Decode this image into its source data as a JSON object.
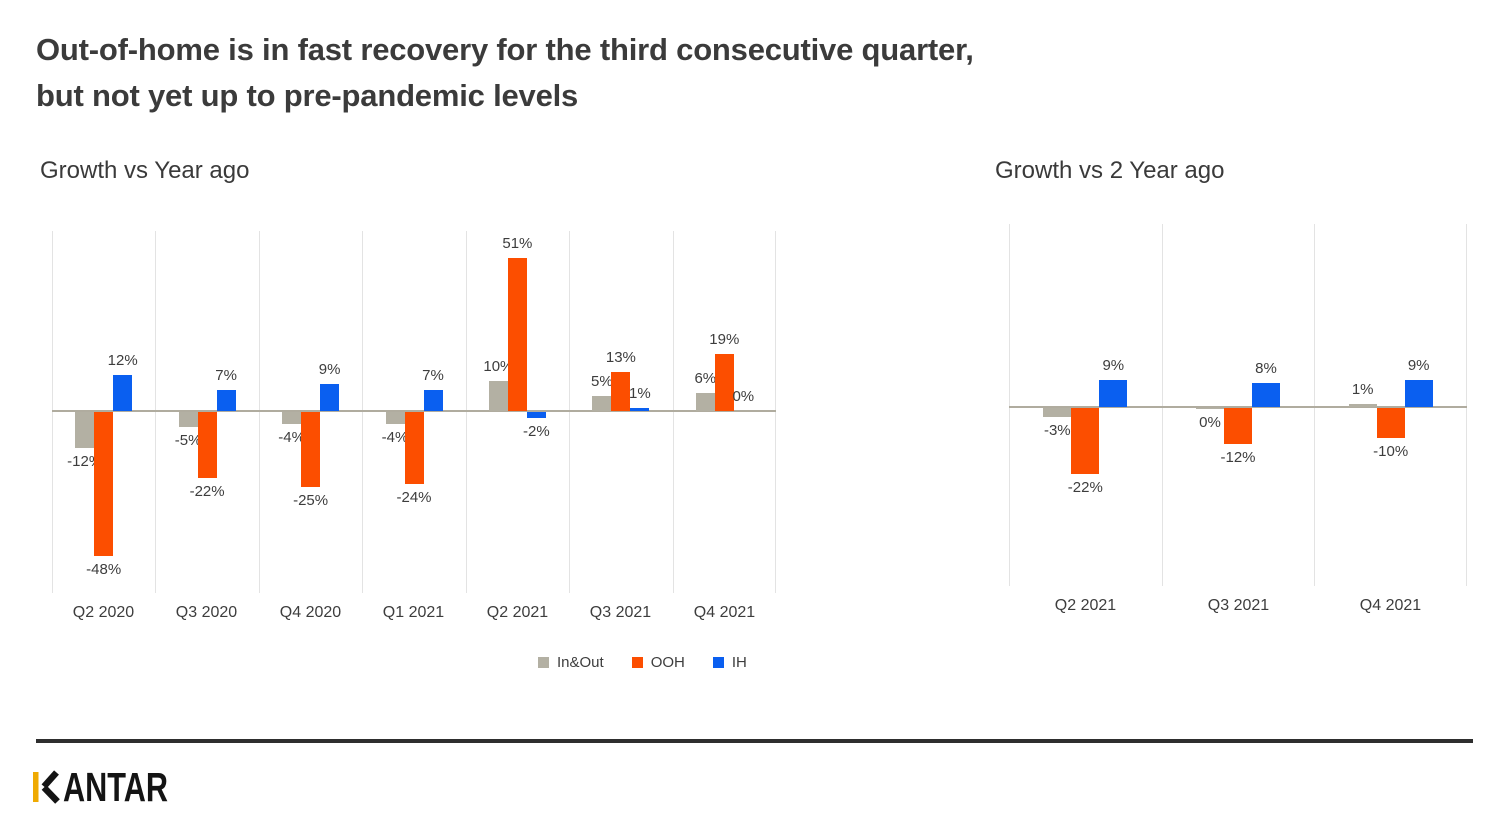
{
  "page": {
    "title_line1": "Out-of-home is in fast recovery for the third consecutive quarter,",
    "title_line2": "but not yet up to pre-pandemic levels"
  },
  "brand": {
    "logo_text": "KANTAR",
    "logo_wordmark_rest": "ANTAR",
    "logo_gold": "#efaa02",
    "logo_black": "#141414",
    "divider_color": "#2e2e2e"
  },
  "colors": {
    "in_out": "#b3b0a3",
    "ooh": "#fc4e00",
    "ih": "#0a5ff0"
  },
  "legend": {
    "items": [
      {
        "label": "In&Out",
        "color": "#b3b0a3"
      },
      {
        "label": "OOH",
        "color": "#fc4e00"
      },
      {
        "label": "IH",
        "color": "#0a5ff0"
      }
    ]
  },
  "chart_data": [
    {
      "type": "bar",
      "title": "Growth vs Year ago",
      "unit": "%",
      "categories": [
        "Q2 2020",
        "Q3 2020",
        "Q4 2020",
        "Q1 2021",
        "Q2 2021",
        "Q3 2021",
        "Q4 2021"
      ],
      "series": [
        {
          "name": "In&Out",
          "color": "#b3b0a3",
          "values": [
            -12,
            -5,
            -4,
            -4,
            10,
            5,
            6
          ]
        },
        {
          "name": "OOH",
          "color": "#fc4e00",
          "values": [
            -48,
            -22,
            -25,
            -24,
            51,
            13,
            19
          ]
        },
        {
          "name": "IH",
          "color": "#0a5ff0",
          "values": [
            12,
            7,
            9,
            7,
            -2,
            1,
            0
          ]
        }
      ],
      "data_labels": {
        "In&Out": [
          "-12%",
          "-5%",
          "-4%",
          "-4%",
          "10%",
          "5%",
          "6%"
        ],
        "OOH": [
          "-48%",
          "-22%",
          "-25%",
          "-24%",
          "51%",
          "13%",
          "19%"
        ],
        "IH": [
          "12%",
          "7%",
          "9%",
          "7%",
          "-2%",
          "1%",
          "0%"
        ]
      },
      "ylim": [
        -60,
        61
      ],
      "grid": "vertical-only",
      "legend_position": "bottom"
    },
    {
      "type": "bar",
      "title": "Growth vs 2 Year ago",
      "unit": "%",
      "categories": [
        "Q2 2021",
        "Q3 2021",
        "Q4 2021"
      ],
      "series": [
        {
          "name": "In&Out",
          "color": "#b3b0a3",
          "values": [
            -3,
            -0.4,
            1
          ]
        },
        {
          "name": "OOH",
          "color": "#fc4e00",
          "values": [
            -22,
            -12,
            -10
          ]
        },
        {
          "name": "IH",
          "color": "#0a5ff0",
          "values": [
            9,
            8,
            9
          ]
        }
      ],
      "data_labels": {
        "In&Out": [
          "-3%",
          "0%",
          "1%"
        ],
        "OOH": [
          "-22%",
          "-12%",
          "-10%"
        ],
        "IH": [
          "9%",
          "8%",
          "9%"
        ]
      },
      "ylim": [
        -60,
        60
      ],
      "grid": "vertical-only",
      "legend_position": "none"
    }
  ]
}
